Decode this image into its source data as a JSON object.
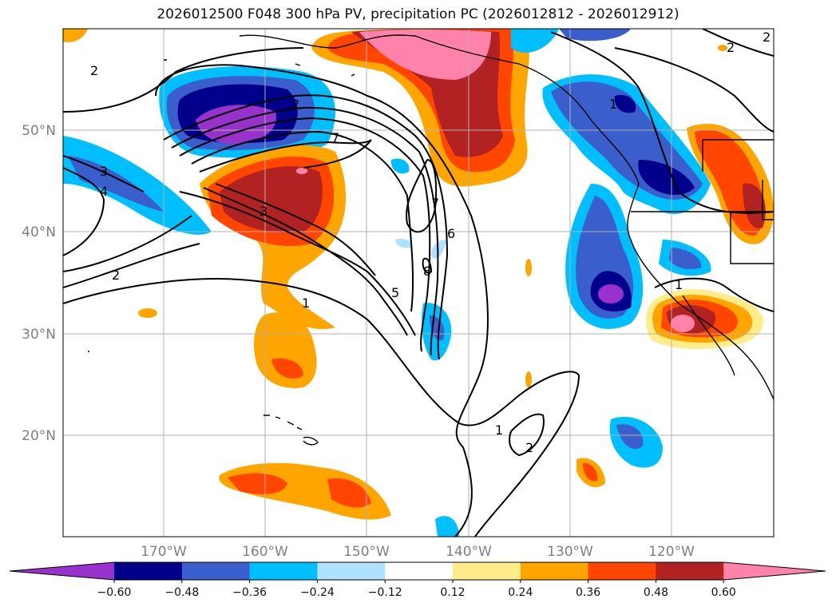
{
  "title": "2026012500 F048 300 hPa PV, precipitation PC (2026012812 - 2026012912)",
  "lat_labels": [
    "50°N",
    "40°N",
    "30°N",
    "20°N"
  ],
  "lon_labels": [
    "170°W",
    "160°W",
    "150°W",
    "140°W",
    "130°W",
    "120°W"
  ],
  "pv_contour_labels": [
    "2",
    "2",
    "2",
    "2",
    "3",
    "3",
    "4",
    "7",
    "7",
    "6",
    "8",
    "5",
    "1",
    "1",
    "1",
    "1",
    "2",
    "2"
  ],
  "colorbar": {
    "ticks": [
      "−0.60",
      "−0.48",
      "−0.36",
      "−0.24",
      "−0.12",
      "0.12",
      "0.24",
      "0.36",
      "0.48",
      "0.60"
    ],
    "colors": [
      "#9932cc",
      "#00008b",
      "#3a5fcd",
      "#00bfff",
      "#b0e2ff",
      "#ffffff",
      "#ffec8b",
      "#ffa500",
      "#ff4500",
      "#b22222",
      "#ff82ab"
    ]
  }
}
